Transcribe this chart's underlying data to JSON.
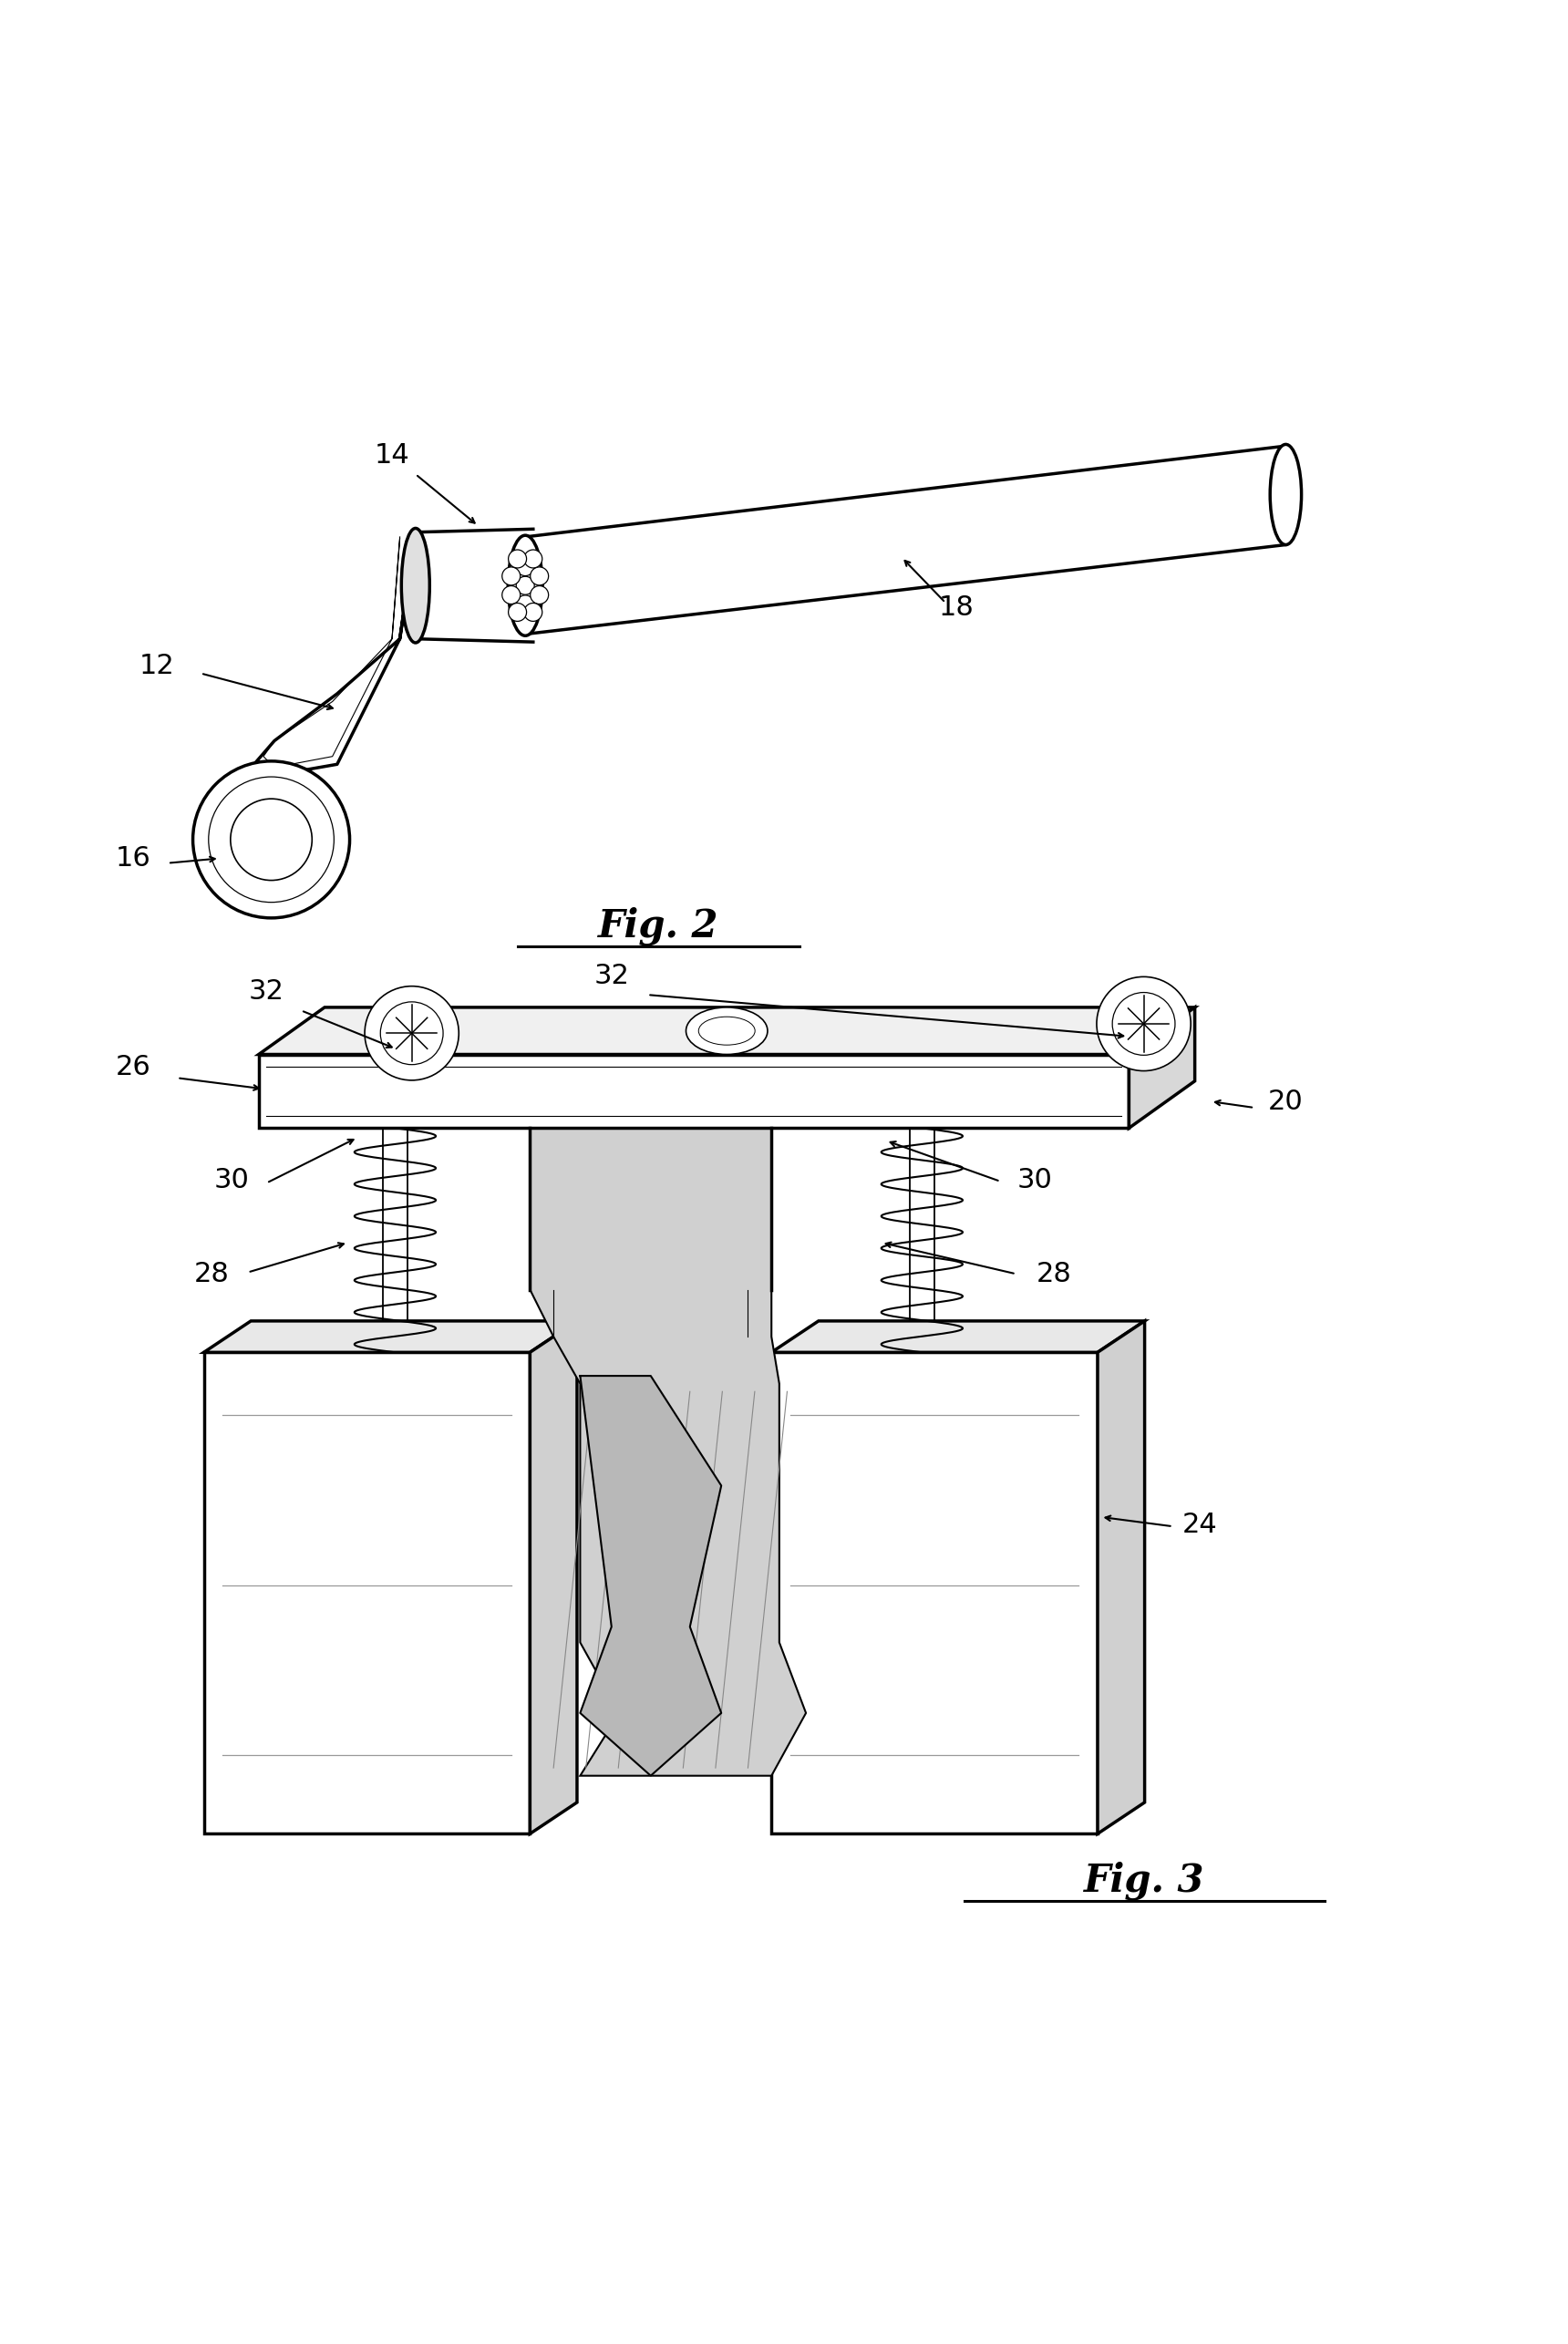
{
  "bg_color": "#ffffff",
  "line_color": "#000000",
  "fig2_label": "Fig. 2",
  "fig3_label": "Fig. 3",
  "lw": 1.5,
  "lw2": 2.5,
  "label_fontsize": 22,
  "fig_label_fontsize": 30
}
